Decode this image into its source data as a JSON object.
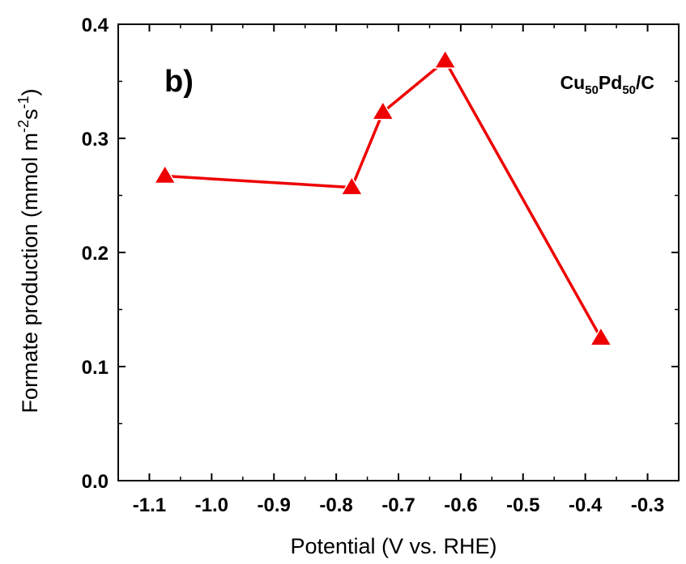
{
  "chart_data": {
    "type": "line",
    "panel_label": "b)",
    "legend": {
      "parts": [
        {
          "text": "Cu",
          "sub": false
        },
        {
          "text": "50",
          "sub": true
        },
        {
          "text": "Pd",
          "sub": false
        },
        {
          "text": "50",
          "sub": true
        },
        {
          "text": "/C",
          "sub": false
        }
      ],
      "placement": "top-right"
    },
    "xlabel": "Potential (V vs. RHE)",
    "ylabel": {
      "parts": [
        {
          "text": "Formate production (mmol m",
          "sup": false
        },
        {
          "text": "-2",
          "sup": true
        },
        {
          "text": "s",
          "sup": false
        },
        {
          "text": "-1",
          "sup": true
        },
        {
          "text": ")",
          "sup": false
        }
      ]
    },
    "xlim": [
      -1.15,
      -0.25
    ],
    "ylim": [
      0.0,
      0.4
    ],
    "x_ticks": [
      -1.1,
      -1.0,
      -0.9,
      -0.8,
      -0.7,
      -0.6,
      -0.5,
      -0.4,
      -0.3
    ],
    "x_tick_labels": [
      "-1.1",
      "-1.0",
      "-0.9",
      "-0.8",
      "-0.7",
      "-0.6",
      "-0.5",
      "-0.4",
      "-0.3"
    ],
    "y_ticks": [
      0.0,
      0.1,
      0.2,
      0.3,
      0.4
    ],
    "y_tick_labels": [
      "0.0",
      "0.1",
      "0.2",
      "0.3",
      "0.4"
    ],
    "grid": false,
    "series": [
      {
        "marker": "triangle",
        "color": "#ee0000",
        "x": [
          -1.075,
          -0.775,
          -0.725,
          -0.625,
          -0.375
        ],
        "y": [
          0.267,
          0.257,
          0.323,
          0.368,
          0.125
        ]
      }
    ]
  }
}
